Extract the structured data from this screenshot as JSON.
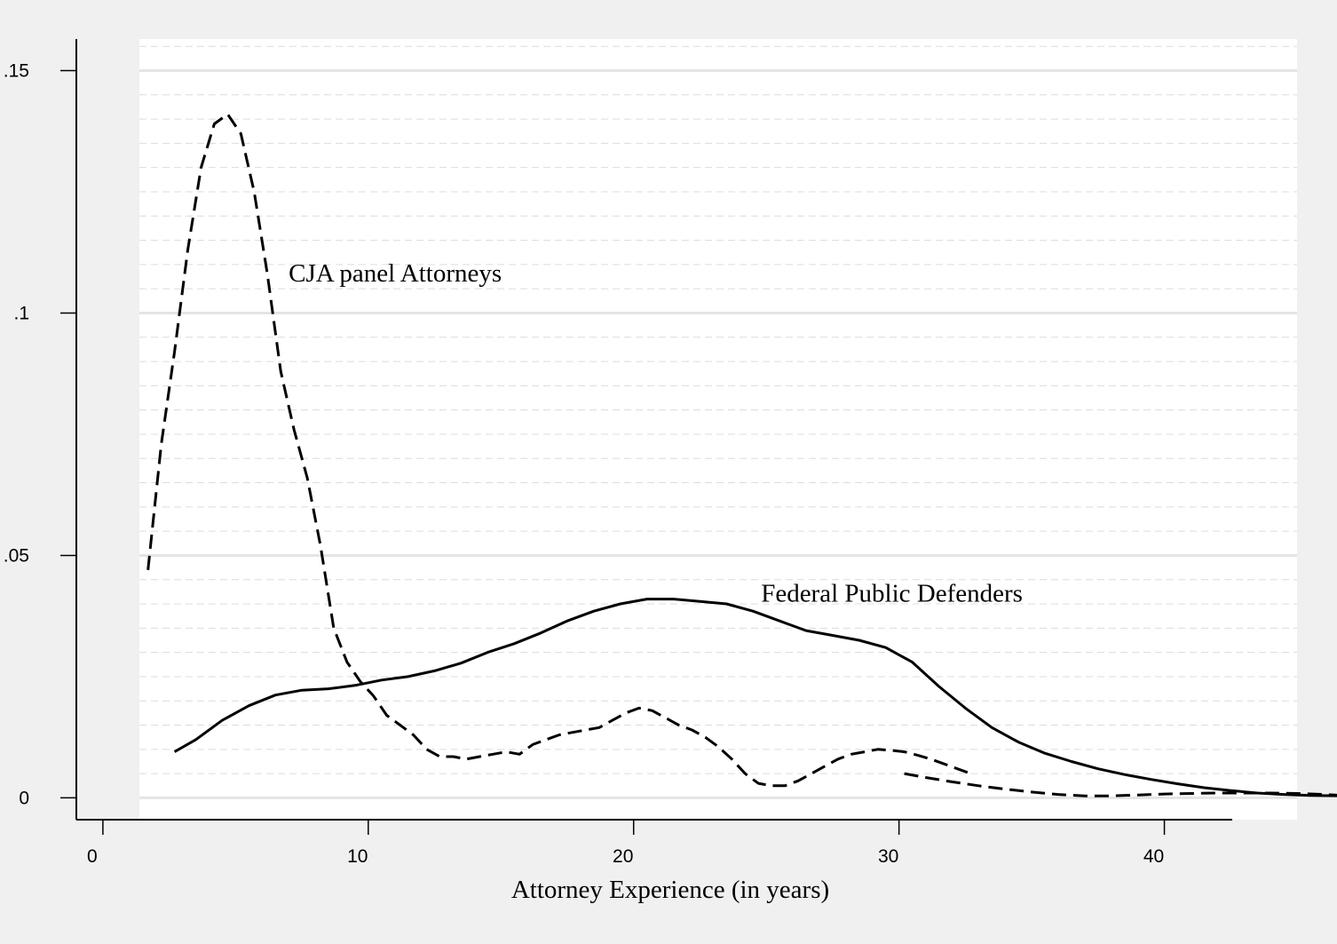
{
  "chart_data": {
    "type": "line",
    "xlabel": "Attorney Experience (in years)",
    "ylabel": "",
    "xlim": [
      -1,
      45
    ],
    "ylim": [
      -0.0045,
      0.1565
    ],
    "x_ticks": [
      0,
      10,
      20,
      30,
      40
    ],
    "x_tick_labels": [
      "0",
      "10",
      "20",
      "30",
      "40"
    ],
    "y_ticks": [
      0,
      0.05,
      0.1,
      0.15
    ],
    "y_tick_labels": [
      "0",
      ".05",
      ".1",
      ".15"
    ],
    "grid": true,
    "series": [
      {
        "name": "CJA panel Attorneys",
        "line_style": "dashed",
        "color": "#000000",
        "x": [
          1.7,
          2.2,
          2.7,
          3.2,
          3.7,
          4.2,
          4.7,
          5.2,
          5.7,
          6.2,
          6.7,
          7.2,
          7.7,
          8.2,
          8.7,
          9.2,
          9.7,
          10.2,
          10.7,
          11.2,
          11.7,
          12.2,
          12.7,
          13.2,
          13.7,
          14.2,
          14.7,
          15.2,
          15.7,
          16.2,
          16.7,
          17.2,
          17.7,
          18.2,
          18.7,
          19.2,
          19.7,
          20.2,
          20.7,
          21.2,
          21.7,
          22.2,
          22.7,
          23.2,
          23.7,
          24.2,
          24.7,
          25.2,
          25.7,
          26.2,
          26.7,
          27.2,
          27.7,
          28.2,
          28.7,
          29.2,
          29.7,
          30.2,
          30.7,
          31.2,
          31.7,
          32.2,
          32.7
        ],
        "y": [
          0.047,
          0.073,
          0.092,
          0.113,
          0.13,
          0.139,
          0.141,
          0.137,
          0.125,
          0.108,
          0.088,
          0.076,
          0.066,
          0.052,
          0.035,
          0.028,
          0.024,
          0.021,
          0.017,
          0.015,
          0.013,
          0.01,
          0.0085,
          0.0085,
          0.008,
          0.0085,
          0.009,
          0.0095,
          0.009,
          0.011,
          0.012,
          0.013,
          0.0135,
          0.014,
          0.0145,
          0.016,
          0.0175,
          0.0185,
          0.018,
          0.0165,
          0.015,
          0.014,
          0.0125,
          0.0105,
          0.008,
          0.005,
          0.003,
          0.0025,
          0.0025,
          0.0035,
          0.005,
          0.0065,
          0.008,
          0.009,
          0.0095,
          0.01,
          0.0098,
          0.0095,
          0.0088,
          0.008,
          0.007,
          0.006,
          0.005
        ]
      },
      {
        "name": "",
        "line_style": "dashed",
        "color": "#000000",
        "x": [
          30.2,
          31,
          32,
          33,
          34,
          35,
          36,
          37,
          38,
          39,
          40,
          41,
          42,
          43,
          44,
          45,
          46,
          46.7
        ],
        "y": [
          0.005,
          0.0042,
          0.0033,
          0.0025,
          0.0018,
          0.0012,
          0.0007,
          0.0004,
          0.0004,
          0.0006,
          0.0008,
          0.0009,
          0.001,
          0.001,
          0.001,
          0.0009,
          0.0007,
          0.0005
        ]
      },
      {
        "name": "Federal Public Defenders",
        "line_style": "solid",
        "color": "#000000",
        "x": [
          2.7,
          3.5,
          4.5,
          5.5,
          6.5,
          7.5,
          8.5,
          9.5,
          10.5,
          11.5,
          12.5,
          13.5,
          14.5,
          15.5,
          16.5,
          17.5,
          18.5,
          19.5,
          20.5,
          21.5,
          22.5,
          23.5,
          24.5,
          25.5,
          26.5,
          27.5,
          28.5,
          29.5,
          30.5,
          31.5,
          32.5,
          33.5,
          34.5,
          35.5,
          36.5,
          37.5,
          38.5,
          39.5,
          40.5,
          41.5,
          42.5,
          43.5,
          44.5,
          45.5,
          46.7
        ],
        "y": [
          0.0095,
          0.012,
          0.016,
          0.019,
          0.0212,
          0.0222,
          0.0225,
          0.0232,
          0.0243,
          0.025,
          0.0262,
          0.0278,
          0.03,
          0.0318,
          0.034,
          0.0365,
          0.0385,
          0.04,
          0.041,
          0.041,
          0.0405,
          0.04,
          0.0385,
          0.0365,
          0.0345,
          0.0335,
          0.0325,
          0.031,
          0.028,
          0.023,
          0.0185,
          0.0145,
          0.0115,
          0.0092,
          0.0075,
          0.006,
          0.0048,
          0.0038,
          0.0029,
          0.0021,
          0.0015,
          0.001,
          0.0007,
          0.0005,
          0.0004
        ]
      }
    ],
    "annotations": [
      {
        "text": "CJA panel Attorneys",
        "x": 7.0,
        "y": 0.1065
      },
      {
        "text": "Federal Public Defenders",
        "x": 24.8,
        "y": 0.0405
      }
    ]
  }
}
